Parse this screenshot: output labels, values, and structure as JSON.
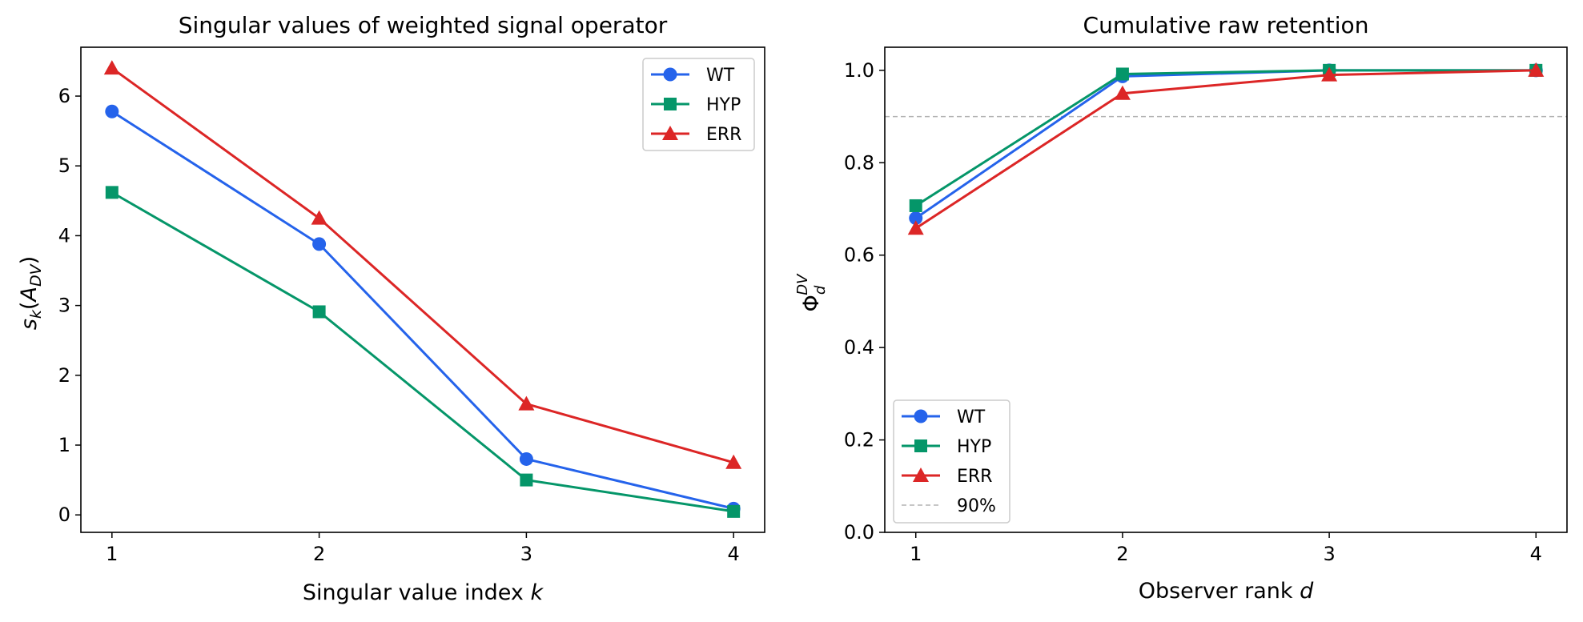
{
  "chart_data": [
    {
      "type": "line",
      "title": "Singular values of weighted signal operator",
      "xlabel": "Singular value index ",
      "xlabel_var": "k",
      "ylabel": "s_k(A_DV)",
      "x": [
        1,
        2,
        3,
        4
      ],
      "xlim": [
        0.85,
        4.15
      ],
      "ylim": [
        -0.25,
        6.7
      ],
      "xticks": [
        "1",
        "2",
        "3",
        "4"
      ],
      "yticks": [
        "0",
        "1",
        "2",
        "3",
        "4",
        "5",
        "6"
      ],
      "legend_position": "upper right",
      "series": [
        {
          "name": "WT",
          "color": "#2563eb",
          "marker": "circle",
          "values": [
            5.78,
            3.88,
            0.8,
            0.09
          ]
        },
        {
          "name": "HYP",
          "color": "#059669",
          "marker": "square",
          "values": [
            4.62,
            2.91,
            0.5,
            0.05
          ]
        },
        {
          "name": "ERR",
          "color": "#dc2626",
          "marker": "triangle",
          "values": [
            6.4,
            4.25,
            1.59,
            0.75
          ]
        }
      ]
    },
    {
      "type": "line",
      "title": "Cumulative raw retention",
      "xlabel": "Observer rank ",
      "xlabel_var": "d",
      "ylabel": "Φ_d^DV",
      "x": [
        1,
        2,
        3,
        4
      ],
      "xlim": [
        0.85,
        4.15
      ],
      "ylim": [
        0.0,
        1.05
      ],
      "xticks": [
        "1",
        "2",
        "3",
        "4"
      ],
      "yticks": [
        "0.0",
        "0.2",
        "0.4",
        "0.6",
        "0.8",
        "1.0"
      ],
      "legend_position": "lower left",
      "reference_line": {
        "label": "90%",
        "value": 0.9,
        "color": "#b3b3b3"
      },
      "series": [
        {
          "name": "WT",
          "color": "#2563eb",
          "marker": "circle",
          "values": [
            0.68,
            0.987,
            1.0,
            1.0
          ]
        },
        {
          "name": "HYP",
          "color": "#059669",
          "marker": "square",
          "values": [
            0.707,
            0.992,
            1.0,
            1.0
          ]
        },
        {
          "name": "ERR",
          "color": "#dc2626",
          "marker": "triangle",
          "values": [
            0.658,
            0.95,
            0.99,
            1.0
          ]
        }
      ]
    }
  ]
}
